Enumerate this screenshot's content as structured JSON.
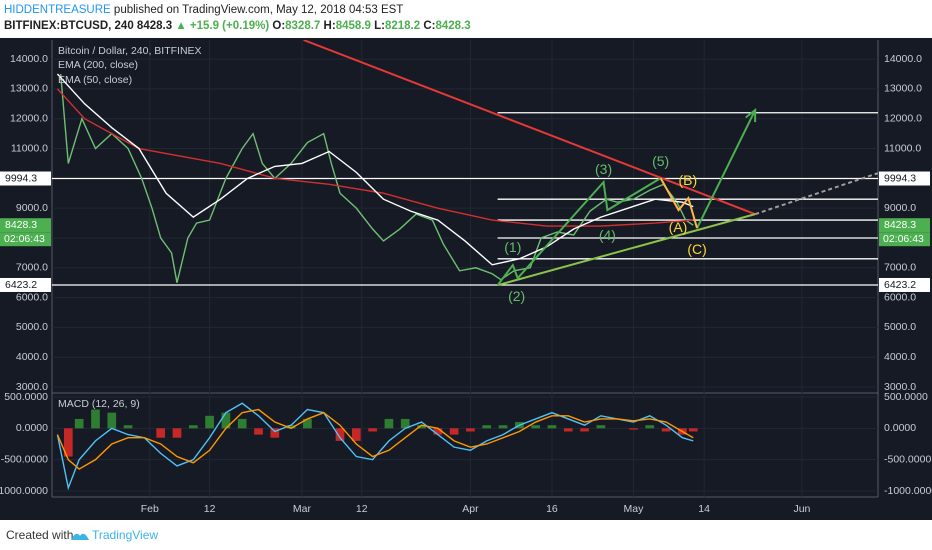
{
  "header": {
    "author": "HIDDENTREASURE",
    "published": "published on TradingView.com, May 12, 2018 04:53 EST",
    "symbol": "BITFINEX:BTCUSD, 240",
    "last": "8428.3",
    "change": "▲ +15.9 (+0.19%)",
    "open_label": "O:",
    "open": "8328.7",
    "high_label": "H:",
    "high": "8458.9",
    "low_label": "L:",
    "low": "8218.2",
    "close_label": "C:",
    "close": "8428.3"
  },
  "footer": {
    "created": "Created with",
    "brand": "TradingView"
  },
  "chart_data": [
    {
      "type": "line",
      "title": "Bitcoin / Dollar, 240, BITFINEX",
      "xlim": [
        14,
        166
      ],
      "xticks": [
        {
          "value": 32,
          "label": "Feb"
        },
        {
          "value": 43,
          "label": "12"
        },
        {
          "value": 60,
          "label": "Mar"
        },
        {
          "value": 71,
          "label": "12"
        },
        {
          "value": 91,
          "label": "Apr"
        },
        {
          "value": 106,
          "label": "16"
        },
        {
          "value": 121,
          "label": "May"
        },
        {
          "value": 134,
          "label": "14"
        },
        {
          "value": 152,
          "label": "Jun"
        }
      ],
      "ylim": [
        2800,
        14640
      ],
      "yticks": [
        {
          "value": 3000,
          "label": "3000.0"
        },
        {
          "value": 4000,
          "label": "4000.0"
        },
        {
          "value": 5000,
          "label": "5000.0"
        },
        {
          "value": 6000,
          "label": "6000.0"
        },
        {
          "value": 7000,
          "label": "7000.0"
        },
        {
          "value": 8000,
          "label": "8000.0"
        },
        {
          "value": 9000,
          "label": "9000.0"
        },
        {
          "value": 10000,
          "label": "10000.0"
        },
        {
          "value": 11000,
          "label": "11000.0"
        },
        {
          "value": 12000,
          "label": "12000.0"
        },
        {
          "value": 13000,
          "label": "13000.0"
        },
        {
          "value": 14000,
          "label": "14000.0"
        }
      ],
      "series": [
        {
          "color": "#6fbf73",
          "x": [
            15.6,
            17,
            19.5,
            22,
            25,
            28,
            30.5,
            32.4,
            34,
            36,
            37,
            39,
            40.6,
            43,
            46,
            49,
            51,
            52.7,
            55,
            58,
            61,
            64,
            65.4,
            67,
            70,
            73,
            75,
            78,
            81,
            84,
            86,
            89,
            92,
            95,
            96.6,
            99,
            102,
            104,
            107,
            110,
            113,
            116,
            118,
            121,
            124,
            126.5,
            129,
            130.6,
            132
          ],
          "values": [
            13500,
            10500,
            12000,
            11000,
            11500,
            11000,
            10000,
            9000,
            8000,
            7500,
            6500,
            8000,
            8500,
            8600,
            10000,
            11000,
            11500,
            10500,
            10000,
            10500,
            11200,
            11500,
            10500,
            9500,
            9000,
            8300,
            7900,
            8300,
            8800,
            8600,
            7800,
            6900,
            7000,
            6800,
            6600,
            6900,
            7000,
            8000,
            8200,
            8100,
            8900,
            9300,
            9200,
            9300,
            9600,
            9800,
            9200,
            8600,
            8428.3
          ]
        },
        {
          "name": "EMA (200, close)",
          "color": "#d32f2f",
          "x": [
            15,
            20,
            30,
            45,
            55,
            65,
            75,
            85,
            95,
            105,
            115,
            125,
            132
          ],
          "values": [
            13000,
            12000,
            11000,
            10500,
            10000,
            9800,
            9500,
            9000,
            8600,
            8400,
            8400,
            8500,
            8600
          ]
        },
        {
          "name": "EMA (50, close)",
          "color": "#ffffff",
          "x": [
            15,
            20,
            25,
            30,
            35,
            40,
            45,
            50,
            55,
            60,
            65,
            70,
            75,
            80,
            85,
            90,
            95,
            100,
            105,
            110,
            115,
            120,
            125,
            130,
            132
          ],
          "values": [
            13500,
            12500,
            11700,
            11000,
            9500,
            8700,
            9300,
            10000,
            10400,
            10500,
            10900,
            10200,
            9300,
            8900,
            8600,
            7900,
            7100,
            7300,
            7700,
            8300,
            8700,
            9000,
            9300,
            9200,
            9050
          ]
        }
      ],
      "levels": [
        {
          "value": 12200,
          "from": 96
        },
        {
          "value": 9994.3,
          "from": 14
        },
        {
          "value": 9300,
          "from": 96
        },
        {
          "value": 8600,
          "from": 96
        },
        {
          "value": 8000,
          "from": 96
        },
        {
          "value": 7300,
          "from": 96
        },
        {
          "value": 6423.2,
          "from": 14
        }
      ],
      "lines": [
        {
          "color": "#e53935",
          "points": [
            [
              60.3,
              14640
            ],
            [
              143.4,
              8799
            ]
          ]
        },
        {
          "color": "#8bc34a",
          "points": [
            [
              96,
              6416
            ],
            [
              143.4,
              8799
            ]
          ]
        },
        {
          "color": "#9e9e9e",
          "dashed": true,
          "points": [
            [
              143.4,
              8799
            ],
            [
              166,
              10174
            ]
          ]
        },
        {
          "color": "#4caf50",
          "arrow": true,
          "points": [
            [
              132.7,
              8329
            ],
            [
              143.4,
              12289
            ]
          ]
        },
        {
          "color": "#4caf50",
          "points": [
            [
              96,
              6416
            ],
            [
              98.8,
              7087
            ],
            [
              99.7,
              6651
            ],
            [
              115.5,
              9873
            ],
            [
              116.2,
              8933
            ],
            [
              126,
              10007
            ]
          ]
        },
        {
          "color": "#ffb74d",
          "points": [
            [
              126,
              10007
            ],
            [
              129.3,
              8933
            ],
            [
              131.1,
              9336
            ],
            [
              132.7,
              8329
            ]
          ]
        }
      ],
      "wave_labels": [
        {
          "text": "(1)",
          "x": 98.8,
          "y": 7658,
          "color": "#66bb6a"
        },
        {
          "text": "(2)",
          "x": 99.5,
          "y": 6013,
          "color": "#66bb6a"
        },
        {
          "text": "(3)",
          "x": 115.5,
          "y": 10275,
          "color": "#66bb6a"
        },
        {
          "text": "(4)",
          "x": 116.2,
          "y": 8060,
          "color": "#66bb6a"
        },
        {
          "text": "(5)",
          "x": 126,
          "y": 10544,
          "color": "#66bb6a"
        },
        {
          "text": "(A)",
          "x": 129.2,
          "y": 8329,
          "color": "#fdd835"
        },
        {
          "text": "(B)",
          "x": 131,
          "y": 9906,
          "color": "#fdd835"
        },
        {
          "text": "(C)",
          "x": 132.7,
          "y": 7590,
          "color": "#fdd835"
        }
      ],
      "price_tags": [
        {
          "value": 9994.3,
          "color": "#ffffff"
        },
        {
          "value": 8428.3,
          "color": "#4caf50"
        },
        {
          "value": 6423.2,
          "color": "#ffffff"
        }
      ],
      "countdown": "02:06:43"
    },
    {
      "type": "line",
      "title": "MACD (12, 26, 9)",
      "xlim": [
        14,
        166
      ],
      "ylim": [
        -1096,
        564
      ],
      "yticks": [
        {
          "value": -1000,
          "label": "-1000.0000"
        },
        {
          "value": -500,
          "label": "-500.0000"
        },
        {
          "value": 0,
          "label": "0.0000"
        },
        {
          "value": 500,
          "label": "500.0000"
        }
      ],
      "x": [
        15,
        17,
        19,
        22,
        25,
        28,
        31,
        34,
        37,
        40,
        43,
        46,
        49,
        52,
        55,
        58,
        61,
        64,
        67,
        70,
        73,
        76,
        79,
        82,
        85,
        88,
        91,
        94,
        97,
        100,
        103,
        106,
        109,
        112,
        115,
        118,
        121,
        124,
        127,
        130,
        132
      ],
      "histogram": [
        0,
        -450,
        150,
        300,
        250,
        50,
        0,
        -150,
        -150,
        50,
        200,
        250,
        150,
        -100,
        -150,
        50,
        150,
        0,
        -200,
        -200,
        -50,
        150,
        150,
        50,
        -100,
        -100,
        -50,
        50,
        50,
        100,
        50,
        50,
        -50,
        -50,
        50,
        0,
        -20,
        50,
        -50,
        -100,
        -50
      ],
      "series": [
        {
          "color": "#4fc3f7",
          "values": [
            -100,
            -950,
            -500,
            -200,
            0,
            -100,
            -150,
            -400,
            -600,
            -500,
            -150,
            250,
            400,
            200,
            -50,
            50,
            300,
            250,
            -150,
            -450,
            -500,
            -200,
            0,
            100,
            -100,
            -300,
            -350,
            -200,
            -100,
            50,
            150,
            250,
            150,
            50,
            200,
            150,
            100,
            200,
            50,
            -150,
            -200
          ]
        },
        {
          "color": "#ff9800",
          "values": [
            -100,
            -500,
            -650,
            -500,
            -250,
            -150,
            -150,
            -250,
            -450,
            -550,
            -350,
            0,
            250,
            300,
            100,
            0,
            150,
            250,
            50,
            -250,
            -450,
            -350,
            -150,
            50,
            0,
            -200,
            -300,
            -250,
            -150,
            -50,
            100,
            200,
            200,
            100,
            150,
            150,
            120,
            150,
            100,
            -50,
            -150
          ]
        }
      ]
    }
  ]
}
